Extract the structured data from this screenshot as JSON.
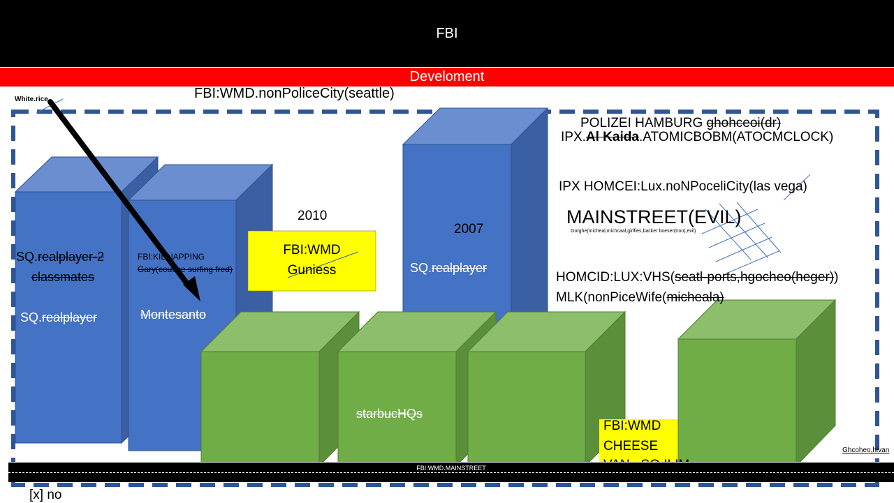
{
  "header": {
    "title": "FBI"
  },
  "banner": {
    "label": "Develoment"
  },
  "labels": {
    "white_rice": "White.rice",
    "seattle": "FBI:WMD.nonPoliceCity(seattle)",
    "polizei_prefix": "POLIZEI HAMBURG ",
    "polizei_struck": "ghohceoi(dr)",
    "ipx_prefix": "IPX.",
    "ipx_struck": "Al Kaida",
    "ipx_suffix": ".ATOMICBOBM(ATOCMCLOCK)",
    "ipx_homcei": "IPX HOMCEI:Lux.noNPoceliCity(las vega)",
    "mainstreet": "MAINSTREET(EVIL)",
    "mainstreet_sub": "Gorghe(micheal,michcaal,girlfies,backer boeser(tron),evil)",
    "homcid_prefix": "HOMCID:LUX:VHS(",
    "homcid_struck": "seatl-ports,hgocheo(heger)",
    "homcid_suffix": ")",
    "mlk_prefix": "MLK(nonPiceWife(",
    "mlk_struck": "micheala)",
    "year_2010": "2010",
    "year_2007": "2007",
    "sq_prefix": "SQ.",
    "sq_struck": "realplayer",
    "sq_rp2_struck": "realplayer-2",
    "classmates": "classmates",
    "kidnapping": "FBI:KIDNAPPING",
    "gary": "Gary(couche surfing fred)",
    "montesanto": "Montesanto",
    "wmd1_line1": "FBI:WMD",
    "wmd1_line2": "Guniess",
    "starbuc": "starbucHQs",
    "wmd2_line1": "FBI:WMD",
    "wmd2_line2": "CHEESE",
    "wmd2_line3": "VAN...SQ.ILIM",
    "ghcoheo": "Ghcoheo,hivan",
    "bottom_bar": "FBI:WMD.MAINSTREET",
    "footer": "[x] no"
  },
  "colors": {
    "blue_front": "#4472C4",
    "blue_top": "#6A8ED0",
    "blue_side": "#3B5FA3",
    "green_front": "#70AD47",
    "green_top": "#8CBE6C",
    "green_side": "#5C8F3A",
    "dash_border": "#2F5597",
    "yellow": "#FFFF00",
    "red": "#FF0000"
  }
}
